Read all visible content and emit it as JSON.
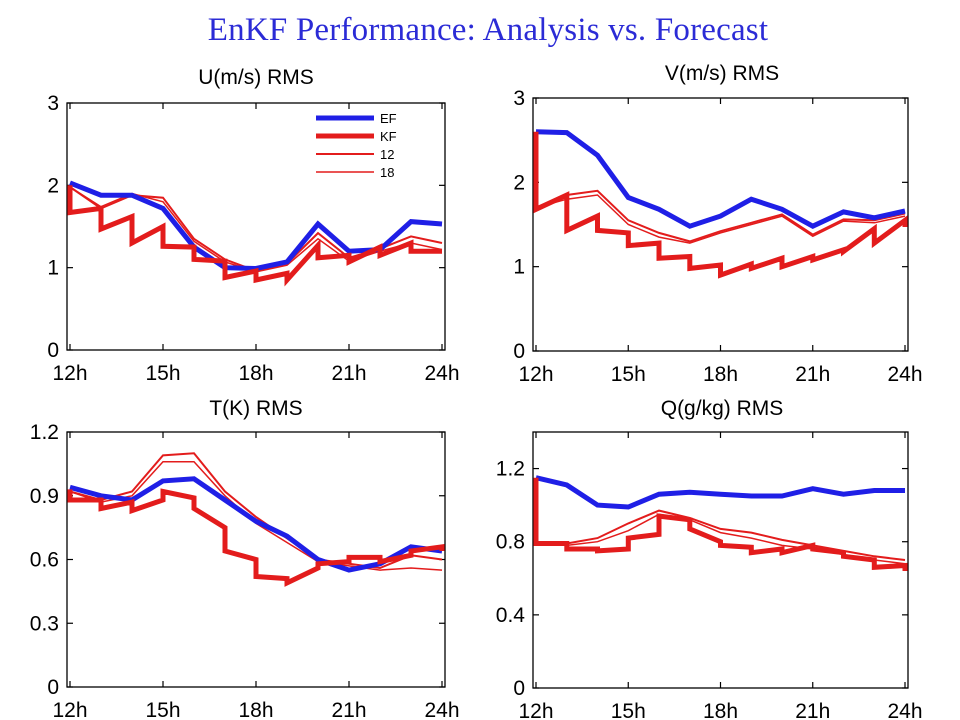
{
  "page": {
    "title": "EnKF Performance: Analysis vs. Forecast"
  },
  "colors": {
    "title": "#2b2bd6",
    "ef": "#1f1fe6",
    "kf": "#e31c1c"
  },
  "legend": {
    "entries": [
      "EF",
      "KF",
      "12",
      "18"
    ]
  },
  "chart_data": [
    {
      "type": "line",
      "title": "U(m/s) RMS",
      "xlabel": "",
      "ylabel": "",
      "xlim": [
        12,
        24
      ],
      "ylim": [
        0,
        3
      ],
      "xticks": [
        12,
        15,
        18,
        21,
        24
      ],
      "xtick_labels": [
        "12h",
        "15h",
        "18h",
        "21h",
        "24h"
      ],
      "yticks": [
        0,
        1,
        2,
        3
      ],
      "ytick_labels": [
        "0",
        "1",
        "2",
        "3"
      ],
      "legend": "top-right",
      "series": [
        {
          "name": "EF",
          "x": [
            12,
            13,
            14,
            15,
            16,
            17,
            18,
            19,
            20,
            21,
            22,
            23,
            24
          ],
          "y": [
            2.03,
            1.88,
            1.88,
            1.72,
            1.25,
            1.0,
            0.99,
            1.07,
            1.53,
            1.2,
            1.22,
            1.56,
            1.53
          ]
        },
        {
          "name": "KF",
          "x": [
            12,
            12,
            13,
            13,
            14,
            14,
            15,
            15,
            16,
            16,
            17,
            17,
            18,
            18,
            19,
            19,
            20,
            20,
            21,
            21,
            22,
            22,
            23,
            23,
            24
          ],
          "y": [
            2.0,
            1.67,
            1.72,
            1.47,
            1.62,
            1.3,
            1.5,
            1.26,
            1.25,
            1.1,
            1.08,
            0.88,
            0.96,
            0.85,
            0.93,
            0.85,
            1.27,
            1.12,
            1.15,
            1.07,
            1.25,
            1.15,
            1.3,
            1.2,
            1.2
          ]
        },
        {
          "name": "12",
          "x": [
            12,
            13,
            14,
            15,
            16,
            17,
            18,
            19,
            20,
            21,
            22,
            23,
            24
          ],
          "y": [
            1.98,
            1.72,
            1.88,
            1.85,
            1.35,
            1.1,
            0.96,
            1.05,
            1.42,
            1.12,
            1.23,
            1.38,
            1.3
          ]
        },
        {
          "name": "18",
          "x": [
            12,
            13,
            14,
            15,
            16,
            17,
            18,
            19,
            20,
            21,
            22,
            23,
            24
          ],
          "y": [
            1.98,
            1.74,
            1.9,
            1.8,
            1.32,
            1.07,
            0.95,
            1.03,
            1.35,
            1.08,
            1.2,
            1.3,
            1.22
          ]
        }
      ]
    },
    {
      "type": "line",
      "title": "V(m/s) RMS",
      "xlabel": "",
      "ylabel": "",
      "xlim": [
        12,
        24
      ],
      "ylim": [
        0,
        3
      ],
      "xticks": [
        12,
        15,
        18,
        21,
        24
      ],
      "xtick_labels": [
        "12h",
        "15h",
        "18h",
        "21h",
        "24h"
      ],
      "yticks": [
        0,
        1,
        2,
        3
      ],
      "ytick_labels": [
        "0",
        "1",
        "2",
        "3"
      ],
      "series": [
        {
          "name": "EF",
          "x": [
            12,
            13,
            14,
            15,
            16,
            17,
            18,
            19,
            20,
            21,
            22,
            23,
            24
          ],
          "y": [
            2.6,
            2.59,
            2.32,
            1.82,
            1.68,
            1.48,
            1.6,
            1.8,
            1.68,
            1.48,
            1.65,
            1.58,
            1.66
          ]
        },
        {
          "name": "KF",
          "x": [
            12,
            12,
            13,
            13,
            14,
            14,
            15,
            15,
            16,
            16,
            17,
            17,
            18,
            18,
            19,
            19,
            20,
            20,
            21,
            21,
            22,
            22,
            23,
            23,
            24,
            24
          ],
          "y": [
            2.6,
            1.68,
            1.85,
            1.43,
            1.6,
            1.43,
            1.4,
            1.25,
            1.28,
            1.1,
            1.12,
            0.98,
            1.02,
            0.9,
            1.03,
            0.98,
            1.1,
            1.0,
            1.12,
            1.08,
            1.2,
            1.18,
            1.45,
            1.28,
            1.55,
            1.47
          ]
        },
        {
          "name": "12",
          "x": [
            12,
            13,
            14,
            15,
            16,
            17,
            18,
            19,
            20,
            21,
            22,
            23,
            24
          ],
          "y": [
            1.7,
            1.85,
            1.9,
            1.55,
            1.4,
            1.3,
            1.42,
            1.52,
            1.62,
            1.38,
            1.56,
            1.55,
            1.63
          ]
        },
        {
          "name": "18",
          "x": [
            12,
            13,
            14,
            15,
            16,
            17,
            18,
            19,
            20,
            21,
            22,
            23,
            24
          ],
          "y": [
            1.7,
            1.8,
            1.85,
            1.5,
            1.35,
            1.28,
            1.4,
            1.5,
            1.6,
            1.36,
            1.54,
            1.52,
            1.6
          ]
        }
      ]
    },
    {
      "type": "line",
      "title": "T(K) RMS",
      "xlabel": "",
      "ylabel": "",
      "xlim": [
        12,
        24
      ],
      "ylim": [
        0,
        1.2
      ],
      "xticks": [
        12,
        15,
        18,
        21,
        24
      ],
      "xtick_labels": [
        "12h",
        "15h",
        "18h",
        "21h",
        "24h"
      ],
      "yticks": [
        0,
        0.3,
        0.6,
        0.9,
        1.2
      ],
      "ytick_labels": [
        "0",
        "0.3",
        "0.6",
        "0.9",
        "1.2"
      ],
      "series": [
        {
          "name": "EF",
          "x": [
            12,
            13,
            14,
            15,
            16,
            17,
            18,
            19,
            20,
            21,
            22,
            23,
            24
          ],
          "y": [
            0.94,
            0.9,
            0.88,
            0.97,
            0.98,
            0.88,
            0.78,
            0.71,
            0.6,
            0.55,
            0.58,
            0.66,
            0.64
          ]
        },
        {
          "name": "KF",
          "x": [
            12,
            12,
            13,
            13,
            14,
            14,
            15,
            15,
            16,
            16,
            17,
            17,
            18,
            18,
            19,
            19,
            20,
            20,
            21,
            21,
            22,
            22,
            23,
            23,
            24,
            24
          ],
          "y": [
            0.93,
            0.88,
            0.88,
            0.84,
            0.87,
            0.83,
            0.88,
            0.92,
            0.89,
            0.84,
            0.75,
            0.64,
            0.6,
            0.52,
            0.51,
            0.49,
            0.56,
            0.58,
            0.59,
            0.61,
            0.61,
            0.59,
            0.62,
            0.64,
            0.66,
            0.64
          ]
        },
        {
          "name": "12",
          "x": [
            12,
            13,
            14,
            15,
            16,
            17,
            18,
            19,
            20,
            21,
            22,
            23,
            24
          ],
          "y": [
            0.92,
            0.88,
            0.92,
            1.09,
            1.1,
            0.92,
            0.8,
            0.7,
            0.6,
            0.58,
            0.56,
            0.62,
            0.6
          ]
        },
        {
          "name": "18",
          "x": [
            12,
            13,
            14,
            15,
            16,
            17,
            18,
            19,
            20,
            21,
            22,
            23,
            24
          ],
          "y": [
            0.92,
            0.87,
            0.9,
            1.06,
            1.06,
            0.9,
            0.77,
            0.68,
            0.59,
            0.57,
            0.55,
            0.56,
            0.55
          ]
        }
      ]
    },
    {
      "type": "line",
      "title": "Q(g/kg) RMS",
      "xlabel": "",
      "ylabel": "",
      "xlim": [
        12,
        24
      ],
      "ylim": [
        0,
        1.4
      ],
      "xticks": [
        12,
        15,
        18,
        21,
        24
      ],
      "xtick_labels": [
        "12h",
        "15h",
        "18h",
        "21h",
        "24h"
      ],
      "yticks": [
        0,
        0.4,
        0.8,
        1.2
      ],
      "ytick_labels": [
        "0",
        "0.4",
        "0.8",
        "1.2"
      ],
      "series": [
        {
          "name": "EF",
          "x": [
            12,
            13,
            14,
            15,
            16,
            17,
            18,
            19,
            20,
            21,
            22,
            23,
            24
          ],
          "y": [
            1.15,
            1.11,
            1.0,
            0.99,
            1.06,
            1.07,
            1.06,
            1.05,
            1.05,
            1.09,
            1.06,
            1.08,
            1.08
          ]
        },
        {
          "name": "KF",
          "x": [
            12,
            12,
            13,
            13,
            14,
            14,
            15,
            15,
            16,
            16,
            17,
            17,
            18,
            18,
            19,
            19,
            20,
            20,
            21,
            21,
            22,
            22,
            23,
            23,
            24,
            24
          ],
          "y": [
            1.15,
            0.79,
            0.79,
            0.76,
            0.76,
            0.75,
            0.76,
            0.82,
            0.84,
            0.94,
            0.92,
            0.87,
            0.8,
            0.78,
            0.77,
            0.74,
            0.76,
            0.74,
            0.78,
            0.76,
            0.74,
            0.72,
            0.7,
            0.66,
            0.67,
            0.64
          ]
        },
        {
          "name": "12",
          "x": [
            12,
            13,
            14,
            15,
            16,
            17,
            18,
            19,
            20,
            21,
            22,
            23,
            24
          ],
          "y": [
            0.79,
            0.79,
            0.82,
            0.9,
            0.97,
            0.93,
            0.87,
            0.85,
            0.81,
            0.78,
            0.75,
            0.72,
            0.7
          ]
        },
        {
          "name": "18",
          "x": [
            12,
            13,
            14,
            15,
            16,
            17,
            18,
            19,
            20,
            21,
            22,
            23,
            24
          ],
          "y": [
            0.79,
            0.78,
            0.8,
            0.86,
            0.95,
            0.92,
            0.85,
            0.82,
            0.78,
            0.76,
            0.73,
            0.7,
            0.68
          ]
        }
      ]
    }
  ]
}
